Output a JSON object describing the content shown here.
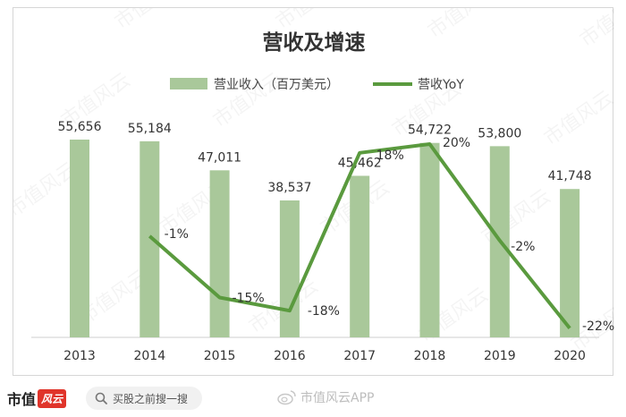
{
  "chart_data": {
    "type": "bar+line",
    "title": "营收及增速",
    "categories": [
      "2013",
      "2014",
      "2015",
      "2016",
      "2017",
      "2018",
      "2019",
      "2020"
    ],
    "bar_series": {
      "name": "营业收入（百万美元）",
      "values": [
        55656,
        55184,
        47011,
        38537,
        45462,
        54722,
        53800,
        41748
      ],
      "labels": [
        "55,656",
        "55,184",
        "47,011",
        "38,537",
        "45,462",
        "54,722",
        "53,800",
        "41,748"
      ],
      "color": "#a9c89a"
    },
    "line_series": {
      "name": "营收YoY",
      "values": [
        null,
        -1,
        -15,
        -18,
        18,
        20,
        -2,
        -22
      ],
      "labels": [
        "",
        "-1%",
        "-15%",
        "-18%",
        "18%",
        "20%",
        "-2%",
        "-22%"
      ],
      "color": "#5a9a3e"
    },
    "legend_position": "top-center",
    "grid": false
  },
  "watermark_text": "市值风云",
  "footer": {
    "logo_text": "市值",
    "logo_seal": "风云",
    "search_text": "买股之前搜一搜",
    "brand_text": "市值风云APP"
  }
}
